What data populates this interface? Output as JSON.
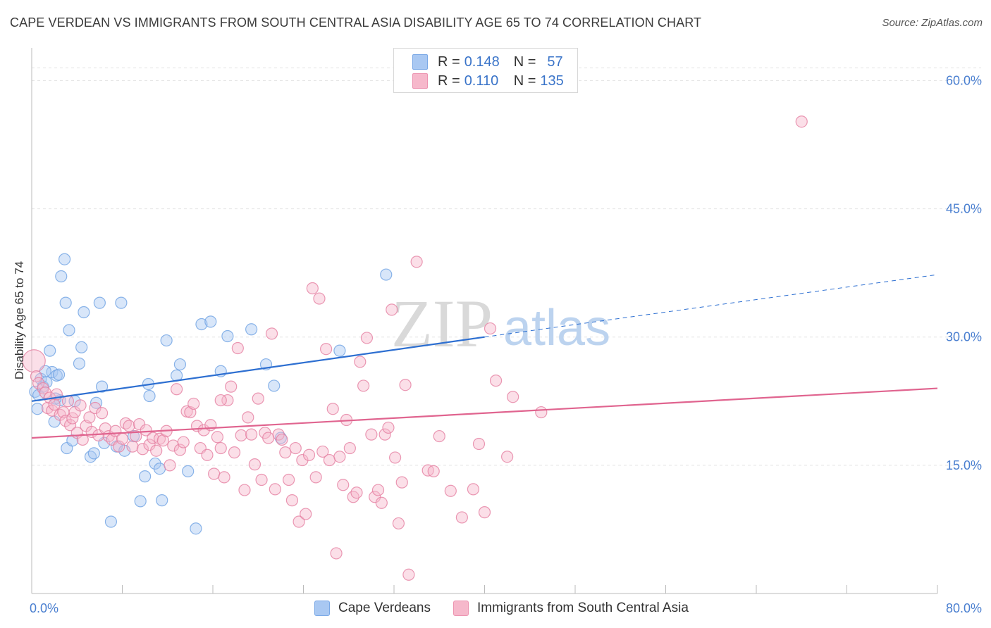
{
  "title": "CAPE VERDEAN VS IMMIGRANTS FROM SOUTH CENTRAL ASIA DISABILITY AGE 65 TO 74 CORRELATION CHART",
  "source": "Source: ZipAtlas.com",
  "watermark": {
    "zip": "ZIP",
    "atlas": "atlas"
  },
  "legend": {
    "rows": [
      {
        "r_label": "R =",
        "r_value": "0.148",
        "n_label": "N =",
        "n_value": "57",
        "color": "#a9c8f2"
      },
      {
        "r_label": "R =",
        "r_value": "0.110",
        "n_label": "N =",
        "n_value": "135",
        "color": "#f6b8cb"
      }
    ]
  },
  "bottom_legend": [
    {
      "label": "Cape Verdeans",
      "color": "#a9c8f2"
    },
    {
      "label": "Immigrants from South Central Asia",
      "color": "#f6b8cb"
    }
  ],
  "chart_data": {
    "type": "scatter",
    "title": "CAPE VERDEAN VS IMMIGRANTS FROM SOUTH CENTRAL ASIA DISABILITY AGE 65 TO 74 CORRELATION CHART",
    "xlabel": "",
    "ylabel": "Disability Age 65 to 74",
    "xlim": [
      0,
      80
    ],
    "ylim": [
      0,
      63
    ],
    "x_tick_labels": [
      "0.0%",
      "80.0%"
    ],
    "y_tick_labels": [
      "15.0%",
      "30.0%",
      "45.0%",
      "60.0%"
    ],
    "y_ticks": [
      15,
      30,
      45,
      60
    ],
    "grid": true,
    "series": [
      {
        "name": "Cape Verdeans",
        "color": "#6fa2e3",
        "fill": "#a9c8f2",
        "trend": {
          "x0": 0,
          "y0": 22.5,
          "x1": 40,
          "y1": 30.0,
          "dashed_to_x": 80,
          "dashed_to_y": 37.3
        },
        "points": [
          [
            0.3,
            23.6
          ],
          [
            0.5,
            21.6
          ],
          [
            0.6,
            23.2
          ],
          [
            0.8,
            25.1
          ],
          [
            1.0,
            24.2
          ],
          [
            1.3,
            24.7
          ],
          [
            1.6,
            28.4
          ],
          [
            1.8,
            25.9
          ],
          [
            2.0,
            20.1
          ],
          [
            2.2,
            25.5
          ],
          [
            2.4,
            25.6
          ],
          [
            2.5,
            22.6
          ],
          [
            2.6,
            37.1
          ],
          [
            2.9,
            39.1
          ],
          [
            3.0,
            34.0
          ],
          [
            3.1,
            17.0
          ],
          [
            3.3,
            30.8
          ],
          [
            3.6,
            17.9
          ],
          [
            3.8,
            22.5
          ],
          [
            4.2,
            26.9
          ],
          [
            4.4,
            28.8
          ],
          [
            4.6,
            32.9
          ],
          [
            5.2,
            16.0
          ],
          [
            5.5,
            16.4
          ],
          [
            5.7,
            22.3
          ],
          [
            6.0,
            34.0
          ],
          [
            6.2,
            24.2
          ],
          [
            6.4,
            17.6
          ],
          [
            7.0,
            8.4
          ],
          [
            7.5,
            17.2
          ],
          [
            7.9,
            34.0
          ],
          [
            8.2,
            16.7
          ],
          [
            9.0,
            18.4
          ],
          [
            9.6,
            10.8
          ],
          [
            10.0,
            13.7
          ],
          [
            10.3,
            24.5
          ],
          [
            10.4,
            23.1
          ],
          [
            10.9,
            15.2
          ],
          [
            11.3,
            14.6
          ],
          [
            11.5,
            10.9
          ],
          [
            11.9,
            29.6
          ],
          [
            12.8,
            25.5
          ],
          [
            13.1,
            26.8
          ],
          [
            13.8,
            14.3
          ],
          [
            14.5,
            7.6
          ],
          [
            15.0,
            31.5
          ],
          [
            15.8,
            31.8
          ],
          [
            16.7,
            26.0
          ],
          [
            17.3,
            30.1
          ],
          [
            19.4,
            30.9
          ],
          [
            20.7,
            26.8
          ],
          [
            21.4,
            24.3
          ],
          [
            22.0,
            18.2
          ],
          [
            27.2,
            28.4
          ],
          [
            31.3,
            37.3
          ],
          [
            1.2,
            26.0
          ],
          [
            2.1,
            22.8
          ]
        ]
      },
      {
        "name": "Immigrants from South Central Asia",
        "color": "#e57fa1",
        "fill": "#f6b8cb",
        "trend": {
          "x0": 0,
          "y0": 18.2,
          "x1": 80,
          "y1": 24.0
        },
        "points": [
          [
            0.2,
            27.2
          ],
          [
            0.4,
            25.4
          ],
          [
            0.6,
            24.6
          ],
          [
            1.0,
            24.0
          ],
          [
            1.2,
            23.5
          ],
          [
            1.4,
            21.7
          ],
          [
            1.6,
            22.9
          ],
          [
            1.8,
            21.4
          ],
          [
            2.0,
            22.1
          ],
          [
            2.2,
            23.3
          ],
          [
            2.5,
            20.9
          ],
          [
            2.8,
            21.2
          ],
          [
            3.0,
            20.2
          ],
          [
            3.2,
            22.5
          ],
          [
            3.4,
            19.7
          ],
          [
            3.6,
            20.5
          ],
          [
            3.8,
            21.2
          ],
          [
            4.0,
            18.8
          ],
          [
            4.3,
            22.0
          ],
          [
            4.5,
            18.0
          ],
          [
            4.8,
            19.6
          ],
          [
            5.1,
            20.6
          ],
          [
            5.3,
            18.9
          ],
          [
            5.6,
            21.7
          ],
          [
            5.9,
            18.5
          ],
          [
            6.2,
            21.1
          ],
          [
            6.5,
            19.3
          ],
          [
            6.8,
            18.4
          ],
          [
            7.1,
            18.0
          ],
          [
            7.4,
            19.0
          ],
          [
            7.7,
            17.2
          ],
          [
            8.0,
            18.1
          ],
          [
            8.3,
            19.9
          ],
          [
            8.6,
            19.6
          ],
          [
            8.9,
            17.2
          ],
          [
            9.2,
            18.4
          ],
          [
            9.5,
            19.8
          ],
          [
            9.8,
            16.9
          ],
          [
            10.1,
            19.1
          ],
          [
            10.4,
            17.4
          ],
          [
            10.7,
            18.2
          ],
          [
            11.0,
            16.7
          ],
          [
            11.3,
            18.1
          ],
          [
            11.6,
            17.9
          ],
          [
            11.9,
            19.0
          ],
          [
            12.2,
            15.0
          ],
          [
            12.5,
            17.3
          ],
          [
            12.8,
            23.9
          ],
          [
            13.1,
            16.8
          ],
          [
            13.4,
            17.7
          ],
          [
            13.7,
            21.3
          ],
          [
            14.0,
            21.2
          ],
          [
            14.3,
            22.2
          ],
          [
            14.6,
            19.6
          ],
          [
            14.9,
            17.0
          ],
          [
            15.2,
            19.1
          ],
          [
            15.5,
            16.2
          ],
          [
            15.8,
            19.7
          ],
          [
            16.1,
            14.0
          ],
          [
            16.4,
            18.3
          ],
          [
            16.7,
            17.0
          ],
          [
            17.0,
            13.6
          ],
          [
            17.3,
            22.6
          ],
          [
            17.6,
            24.2
          ],
          [
            17.9,
            16.5
          ],
          [
            18.2,
            28.7
          ],
          [
            18.5,
            18.5
          ],
          [
            18.8,
            12.1
          ],
          [
            19.1,
            20.6
          ],
          [
            19.4,
            18.6
          ],
          [
            19.7,
            15.1
          ],
          [
            20.0,
            22.8
          ],
          [
            20.3,
            13.3
          ],
          [
            20.6,
            18.8
          ],
          [
            20.9,
            18.2
          ],
          [
            21.2,
            30.4
          ],
          [
            21.5,
            12.2
          ],
          [
            21.8,
            18.6
          ],
          [
            22.1,
            18.0
          ],
          [
            22.4,
            16.5
          ],
          [
            22.7,
            13.3
          ],
          [
            23.0,
            10.9
          ],
          [
            23.3,
            17.0
          ],
          [
            23.6,
            8.4
          ],
          [
            23.9,
            15.6
          ],
          [
            24.2,
            9.3
          ],
          [
            24.5,
            16.2
          ],
          [
            24.8,
            35.7
          ],
          [
            25.1,
            13.6
          ],
          [
            25.4,
            34.5
          ],
          [
            25.7,
            16.6
          ],
          [
            26.0,
            28.6
          ],
          [
            26.3,
            15.6
          ],
          [
            26.6,
            21.6
          ],
          [
            26.9,
            4.7
          ],
          [
            27.2,
            16.0
          ],
          [
            27.5,
            12.7
          ],
          [
            27.8,
            20.3
          ],
          [
            28.1,
            17.0
          ],
          [
            28.4,
            11.3
          ],
          [
            28.7,
            11.8
          ],
          [
            29.0,
            27.1
          ],
          [
            29.3,
            24.3
          ],
          [
            29.6,
            29.9
          ],
          [
            30.0,
            18.6
          ],
          [
            30.3,
            11.3
          ],
          [
            30.6,
            12.1
          ],
          [
            30.9,
            10.6
          ],
          [
            31.2,
            18.6
          ],
          [
            31.5,
            19.4
          ],
          [
            31.8,
            33.2
          ],
          [
            32.1,
            15.9
          ],
          [
            32.4,
            8.2
          ],
          [
            32.7,
            13.0
          ],
          [
            33.0,
            24.4
          ],
          [
            33.3,
            2.2
          ],
          [
            34.0,
            38.8
          ],
          [
            35.0,
            14.4
          ],
          [
            35.5,
            14.3
          ],
          [
            36.0,
            18.4
          ],
          [
            37.0,
            12.0
          ],
          [
            38.0,
            8.9
          ],
          [
            39.0,
            12.2
          ],
          [
            39.5,
            17.5
          ],
          [
            40.0,
            9.5
          ],
          [
            40.5,
            31.0
          ],
          [
            41.0,
            24.9
          ],
          [
            42.0,
            16.0
          ],
          [
            42.5,
            23.0
          ],
          [
            45.0,
            21.2
          ],
          [
            68.0,
            55.2
          ],
          [
            16.7,
            22.6
          ]
        ]
      }
    ]
  }
}
